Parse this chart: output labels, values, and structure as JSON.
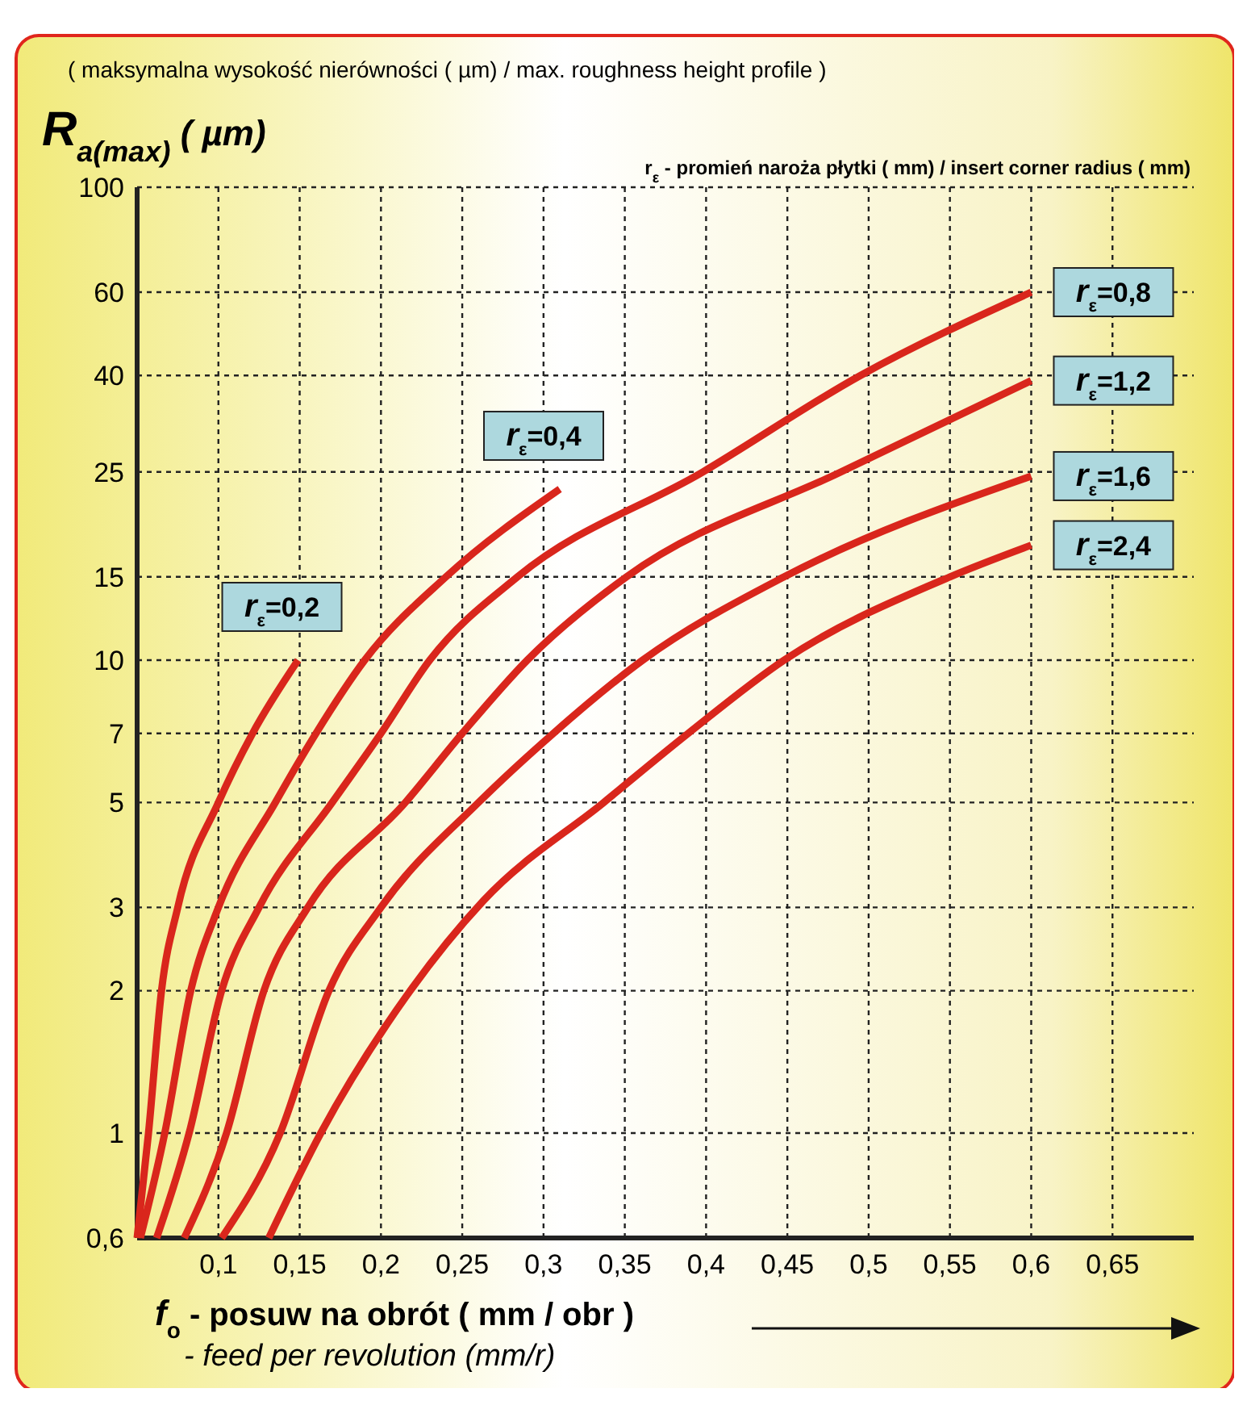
{
  "chart_data": {
    "type": "line",
    "title": "( maksymalna wysokość nierówności ( µm) / max. roughness  height profile )",
    "ylabel": "R$_{a(max)}$ ( µm)",
    "xlabel": "f$_{o}$ - posuw na obrót ( mm / obr )\n- feed per revolution (mm/r)",
    "legend_title": "r$_{ε}$ - promień naroża płytki ( mm) / insert corner radius   ( mm)",
    "log": "y",
    "grid": true,
    "marker": "none",
    "line_style": "solid",
    "xlim": [
      0.05,
      0.7
    ],
    "ylim": [
      0.6,
      100
    ],
    "xticks": [
      {
        "value": 0.1,
        "label": "0,1"
      },
      {
        "value": 0.15,
        "label": "0,15"
      },
      {
        "value": 0.2,
        "label": "0,2"
      },
      {
        "value": 0.25,
        "label": "0,25"
      },
      {
        "value": 0.3,
        "label": "0,3"
      },
      {
        "value": 0.35,
        "label": "0,35"
      },
      {
        "value": 0.4,
        "label": "0,4"
      },
      {
        "value": 0.45,
        "label": "0,45"
      },
      {
        "value": 0.5,
        "label": "0,5"
      },
      {
        "value": 0.55,
        "label": "0,55"
      },
      {
        "value": 0.6,
        "label": "0,6"
      },
      {
        "value": 0.65,
        "label": "0,65"
      }
    ],
    "yticks": [
      {
        "value": 0.6,
        "label": "0,6"
      },
      1,
      2,
      3,
      5,
      7,
      10,
      15,
      25,
      40,
      60,
      100
    ],
    "series": [
      {
        "name": "r$_{ε}$=0,2",
        "color": "#d9261c",
        "x": [
          0.05,
          0.057,
          0.065,
          0.075,
          0.1,
          0.121,
          0.149
        ],
        "values": [
          0.6,
          1,
          2,
          3,
          5,
          7,
          10
        ]
      },
      {
        "name": "r$_{ε}$=0,4",
        "color": "#d9261c",
        "x": [
          0.052,
          0.067,
          0.083,
          0.1,
          0.135,
          0.16,
          0.19,
          0.24,
          0.31
        ],
        "values": [
          0.6,
          1,
          2,
          3,
          5,
          7,
          10,
          15,
          23
        ]
      },
      {
        "name": "r$_{ε}$=0,8",
        "color": "#d9261c",
        "x": [
          0.062,
          0.082,
          0.102,
          0.125,
          0.17,
          0.2,
          0.23,
          0.284,
          0.398,
          0.495,
          0.6
        ],
        "values": [
          0.6,
          1,
          2,
          3,
          5,
          7,
          10,
          15,
          25,
          40,
          60
        ]
      },
      {
        "name": "r$_{ε}$=1,2",
        "color": "#d9261c",
        "x": [
          0.079,
          0.105,
          0.128,
          0.155,
          0.215,
          0.25,
          0.29,
          0.351,
          0.483,
          0.6
        ],
        "values": [
          0.6,
          1,
          2,
          3,
          5,
          7,
          10,
          15,
          25,
          39
        ]
      },
      {
        "name": "r$_{ε}$=1,6",
        "color": "#d9261c",
        "x": [
          0.102,
          0.138,
          0.168,
          0.2,
          0.26,
          0.306,
          0.361,
          0.448,
          0.6
        ],
        "values": [
          0.6,
          1,
          2,
          3,
          5,
          7,
          10,
          15,
          24.5
        ]
      },
      {
        "name": "r$_{ε}$=2,4",
        "color": "#d9261c",
        "x": [
          0.131,
          0.163,
          0.218,
          0.263,
          0.337,
          0.389,
          0.448,
          0.55,
          0.6
        ],
        "values": [
          0.6,
          1,
          2,
          3.1,
          5,
          7,
          10,
          15,
          17.5
        ]
      }
    ]
  }
}
